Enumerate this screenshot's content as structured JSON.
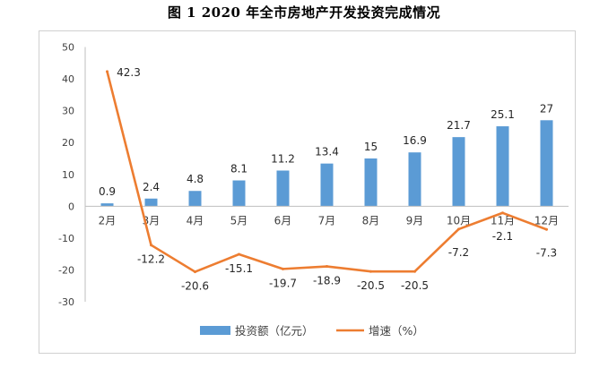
{
  "title": "图 1 2020 年全市房地产开发投资完成情况",
  "chart_data": {
    "type": "bar",
    "categories": [
      "2月",
      "3月",
      "4月",
      "5月",
      "6月",
      "7月",
      "8月",
      "9月",
      "10月",
      "11月",
      "12月"
    ],
    "series": [
      {
        "name": "投资额（亿元）",
        "type": "bar",
        "color": "#5b9bd5",
        "values": [
          0.9,
          2.4,
          4.8,
          8.1,
          11.2,
          13.4,
          15,
          16.9,
          21.7,
          25.1,
          27
        ]
      },
      {
        "name": "增速（%）",
        "type": "line",
        "color": "#ed7d31",
        "values": [
          42.3,
          -12.2,
          -20.6,
          -15.1,
          -19.7,
          -18.9,
          -20.5,
          -20.5,
          -7.2,
          -2.1,
          -7.3
        ]
      }
    ],
    "yticks": [
      50,
      40,
      30,
      20,
      10,
      0,
      -10,
      -20,
      -30
    ],
    "ylim": [
      -30,
      50
    ],
    "grid": false,
    "legend": "bottom"
  }
}
